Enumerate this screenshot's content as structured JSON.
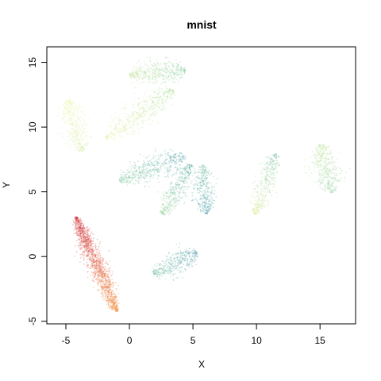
{
  "chart_data": {
    "type": "scatter",
    "title": "mnist",
    "xlabel": "X",
    "ylabel": "Y",
    "xlim": [
      -6.5,
      17.8
    ],
    "ylim": [
      -5.2,
      16.2
    ],
    "xticks": [
      "-5",
      "0",
      "5",
      "10",
      "15"
    ],
    "yticks": [
      "-5",
      "0",
      "5",
      "10",
      "15"
    ],
    "grid": false,
    "legend": "none",
    "colormap": "spectral",
    "clusters": [
      {
        "cx": -2.6,
        "cy": -0.6,
        "length": 8.0,
        "width": 0.85,
        "angle": -66,
        "color_a": "#d33b4a",
        "color_b": "#f5a35a",
        "density": 1400
      },
      {
        "cx": 2.2,
        "cy": 14.2,
        "length": 4.4,
        "width": 1.2,
        "angle": 5,
        "color_a": "#cce6a0",
        "color_b": "#8fd0a8",
        "density": 450
      },
      {
        "cx": 0.8,
        "cy": 11.0,
        "length": 6.5,
        "width": 1.3,
        "angle": 35,
        "color_a": "#eef3a8",
        "color_b": "#b4e0a0",
        "density": 520
      },
      {
        "cx": -4.3,
        "cy": 10.1,
        "length": 4.2,
        "width": 1.25,
        "angle": -75,
        "color_a": "#f2f6b2",
        "color_b": "#d7eda4",
        "density": 420
      },
      {
        "cx": 1.8,
        "cy": 6.8,
        "length": 5.5,
        "width": 1.2,
        "angle": 20,
        "color_a": "#90cfa5",
        "color_b": "#5fa8b0",
        "density": 480
      },
      {
        "cx": 3.7,
        "cy": 5.2,
        "length": 4.5,
        "width": 1.0,
        "angle": 60,
        "color_a": "#a6d9a2",
        "color_b": "#68b2ad",
        "density": 400
      },
      {
        "cx": 5.9,
        "cy": 5.2,
        "length": 3.8,
        "width": 1.0,
        "angle": -85,
        "color_a": "#86c8a6",
        "color_b": "#5aa5b2",
        "density": 360
      },
      {
        "cx": 10.7,
        "cy": 5.6,
        "length": 5.0,
        "width": 1.05,
        "angle": 70,
        "color_a": "#e2f0a0",
        "color_b": "#7fc0a8",
        "density": 380
      },
      {
        "cx": 15.5,
        "cy": 6.8,
        "length": 3.8,
        "width": 1.45,
        "angle": -75,
        "color_a": "#c6e7a0",
        "color_b": "#98d2a4",
        "density": 420
      },
      {
        "cx": 3.6,
        "cy": -0.5,
        "length": 3.8,
        "width": 1.2,
        "angle": 25,
        "color_a": "#84c7a6",
        "color_b": "#5aa2b0",
        "density": 380
      }
    ]
  }
}
